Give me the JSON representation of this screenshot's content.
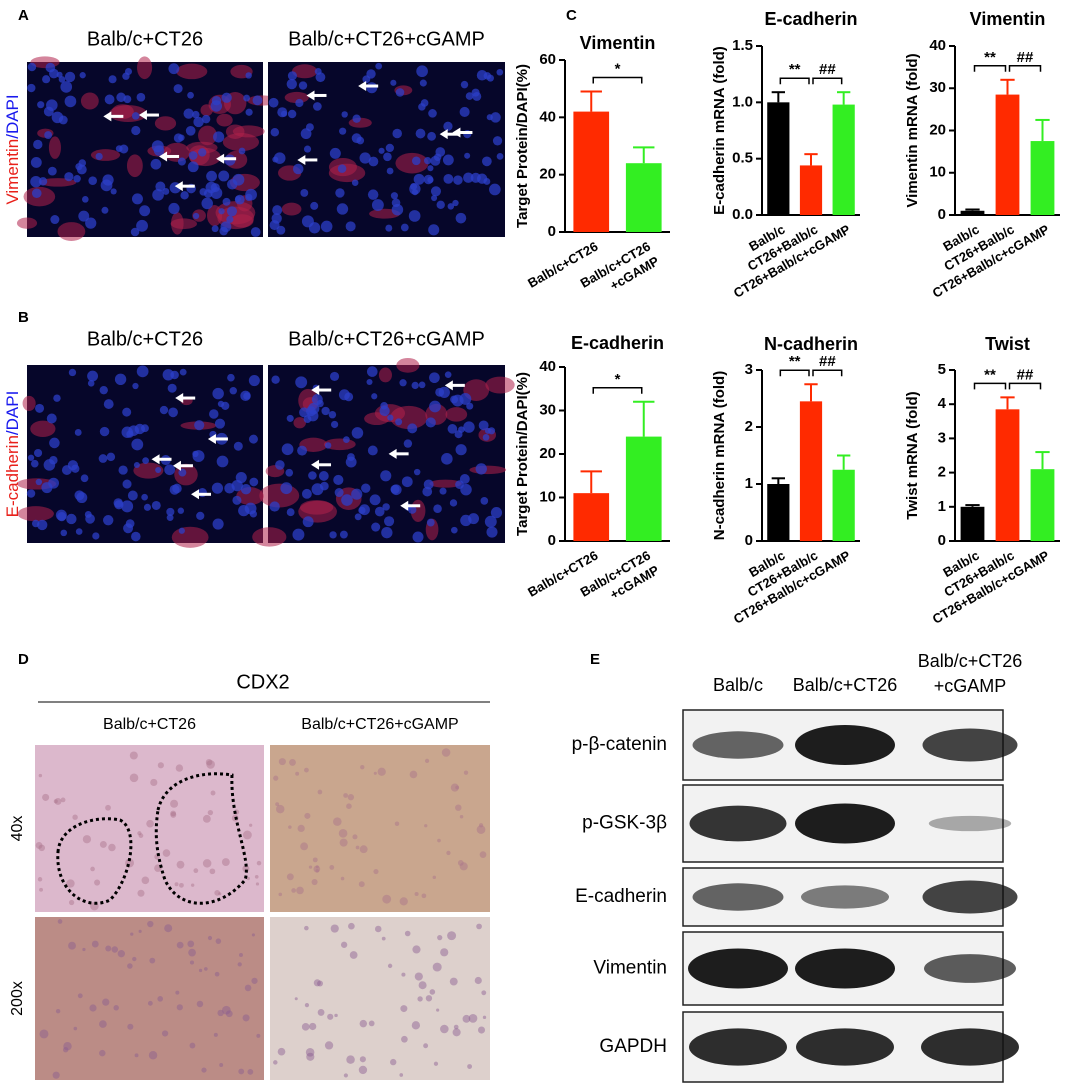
{
  "panel_labels": [
    "A",
    "B",
    "C",
    "D",
    "E"
  ],
  "if_rows": [
    {
      "columns": [
        "Balb/c+CT26",
        "Balb/c+CT26+cGAMP"
      ],
      "stain": [
        {
          "text": "Vimentin",
          "color": "#e8201a"
        },
        {
          "text": "/DAPI",
          "color": "#1a1aee"
        }
      ]
    },
    {
      "columns": [
        "Balb/c+CT26",
        "Balb/c+CT26+cGAMP"
      ],
      "stain": [
        {
          "text": "E-cadherin",
          "color": "#e8201a"
        },
        {
          "text": "/DAPI",
          "color": "#1a1aee"
        }
      ]
    }
  ],
  "ihc": {
    "title": "CDX2",
    "columns": [
      "Balb/c+CT26",
      "Balb/c+CT26+cGAMP"
    ],
    "rows": [
      "40x",
      "200x"
    ]
  },
  "blot": {
    "lanes": [
      [
        "Balb/c"
      ],
      [
        "Balb/c+CT26"
      ],
      [
        "Balb/c+CT26",
        "+cGAMP"
      ]
    ],
    "proteins": [
      "p-β-catenin",
      "p-GSK-3β",
      "E-cadherin",
      "Vimentin",
      "GAPDH"
    ]
  },
  "chart_data": [
    {
      "type": "bar",
      "title": "Vimentin",
      "ylabel": "Target Protein/DAPI(%)",
      "categories": [
        [
          "Balb/c+CT26"
        ],
        [
          "Balb/c+CT26",
          "+cGAMP"
        ]
      ],
      "values": [
        42,
        24
      ],
      "errors": [
        7,
        5.5
      ],
      "colors": [
        "#ff2a00",
        "#33ee22"
      ],
      "ylim": [
        0,
        60
      ],
      "yticks": [
        0,
        20,
        40,
        60
      ],
      "annotations": [
        "*"
      ]
    },
    {
      "type": "bar",
      "title": "E-cadherin",
      "ylabel": "Target Protein/DAPI(%)",
      "categories": [
        [
          "Balb/c+CT26"
        ],
        [
          "Balb/c+CT26",
          "+cGAMP"
        ]
      ],
      "values": [
        11,
        24
      ],
      "errors": [
        5,
        8
      ],
      "colors": [
        "#ff2a00",
        "#33ee22"
      ],
      "ylim": [
        0,
        40
      ],
      "yticks": [
        0,
        10,
        20,
        30,
        40
      ],
      "annotations": [
        "*"
      ]
    },
    {
      "type": "bar",
      "title": "E-cadherin",
      "ylabel": "E-cadherin mRNA (fold)",
      "categories": [
        [
          "Balb/c"
        ],
        [
          "CT26+Balb/c"
        ],
        [
          "CT26+Balb/c+cGAMP"
        ]
      ],
      "values": [
        1.0,
        0.44,
        0.98
      ],
      "errors": [
        0.09,
        0.1,
        0.11
      ],
      "colors": [
        "#000000",
        "#ff2a00",
        "#33ee22"
      ],
      "ylim": [
        0,
        1.5
      ],
      "yticks": [
        {
          "value": 0,
          "label": "0.0"
        },
        0.5,
        {
          "value": 1,
          "label": "1.0"
        },
        1.5
      ],
      "annotations": [
        "**",
        "##"
      ]
    },
    {
      "type": "bar",
      "title": "Vimentin",
      "ylabel": "Vimentin mRNA (fold)",
      "categories": [
        [
          "Balb/c"
        ],
        [
          "CT26+Balb/c"
        ],
        [
          "CT26+Balb/c+cGAMP"
        ]
      ],
      "values": [
        1,
        28.5,
        17.5
      ],
      "errors": [
        0.3,
        3.5,
        5
      ],
      "colors": [
        "#000000",
        "#ff2a00",
        "#33ee22"
      ],
      "ylim": [
        0,
        40
      ],
      "yticks": [
        0,
        10,
        20,
        30,
        40
      ],
      "annotations": [
        "**",
        "##"
      ]
    },
    {
      "type": "bar",
      "title": "N-cadherin",
      "ylabel": "N-cadherin mRNA (fold)",
      "categories": [
        [
          "Balb/c"
        ],
        [
          "CT26+Balb/c"
        ],
        [
          "CT26+Balb/c+cGAMP"
        ]
      ],
      "values": [
        1.0,
        2.45,
        1.25
      ],
      "errors": [
        0.1,
        0.3,
        0.25
      ],
      "colors": [
        "#000000",
        "#ff2a00",
        "#33ee22"
      ],
      "ylim": [
        0,
        3
      ],
      "yticks": [
        0,
        1,
        2,
        3
      ],
      "annotations": [
        "**",
        "##"
      ]
    },
    {
      "type": "bar",
      "title": "Twist",
      "ylabel": "Twist mRNA (fold)",
      "categories": [
        [
          "Balb/c"
        ],
        [
          "CT26+Balb/c"
        ],
        [
          "CT26+Balb/c+cGAMP"
        ]
      ],
      "values": [
        1.0,
        3.85,
        2.1
      ],
      "errors": [
        0.05,
        0.35,
        0.5
      ],
      "colors": [
        "#000000",
        "#ff2a00",
        "#33ee22"
      ],
      "ylim": [
        0,
        5
      ],
      "yticks": [
        0,
        1,
        2,
        3,
        4,
        5
      ],
      "annotations": [
        "**",
        "##"
      ]
    }
  ]
}
